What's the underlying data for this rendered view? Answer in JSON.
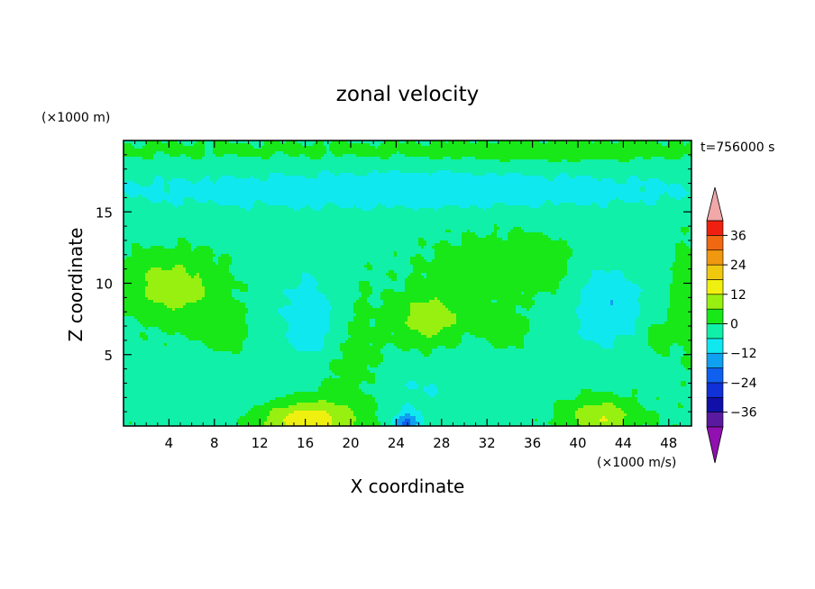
{
  "chart_data": {
    "type": "heatmap",
    "title": "zonal velocity",
    "xlabel": "X coordinate",
    "ylabel": "Z coordinate",
    "x_unit_label": "(×1000 m/s)",
    "y_unit_label": "(×1000 m)",
    "time_label": "t=756000 s",
    "xlim": [
      0,
      50
    ],
    "ylim": [
      0,
      20
    ],
    "x_ticks": [
      4,
      8,
      12,
      16,
      20,
      24,
      28,
      32,
      36,
      40,
      44,
      48
    ],
    "y_ticks": [
      5,
      10,
      15
    ],
    "colorbar": {
      "tick_labels": [
        "36",
        "24",
        "12",
        "0",
        "−12",
        "−24",
        "−36"
      ],
      "levels": [
        -42,
        -36,
        -30,
        -24,
        -18,
        -12,
        -6,
        0,
        6,
        12,
        18,
        24,
        30,
        36,
        42
      ],
      "colors": [
        "#5a1aa0",
        "#1010a8",
        "#1030d8",
        "#1060f0",
        "#10a0f0",
        "#10e8f0",
        "#10f0a8",
        "#18e818",
        "#98f010",
        "#f0f010",
        "#f0c810",
        "#f09810",
        "#f06810",
        "#f02010"
      ],
      "over_color": "#f0a8a8",
      "under_color": "#9010b0"
    },
    "blobs": [
      {
        "x": 25,
        "z": 10,
        "sx": 40,
        "sz": 12,
        "v": -3
      },
      {
        "x": 25,
        "z": 16.5,
        "sx": 40,
        "sz": 1.5,
        "v": -7
      },
      {
        "x": 27,
        "z": 16.8,
        "sx": 6,
        "sz": 1.0,
        "v": -2
      },
      {
        "x": 25,
        "z": 19.3,
        "sx": 40,
        "sz": 0.7,
        "v": 3
      },
      {
        "x": 38,
        "z": 19.2,
        "sx": 8,
        "sz": 0.6,
        "v": 4
      },
      {
        "x": 5,
        "z": 9.5,
        "sx": 4.5,
        "sz": 2.5,
        "v": 10
      },
      {
        "x": 3,
        "z": 10.5,
        "sx": 3,
        "sz": 1.5,
        "v": 3
      },
      {
        "x": 9,
        "z": 6.5,
        "sx": 2,
        "sz": 1.2,
        "v": 6
      },
      {
        "x": 16,
        "z": 0.3,
        "sx": 4,
        "sz": 1.5,
        "v": 18
      },
      {
        "x": 42,
        "z": 0.6,
        "sx": 3,
        "sz": 1.3,
        "v": 13
      },
      {
        "x": 27,
        "z": 7.5,
        "sx": 3,
        "sz": 1.8,
        "v": 12
      },
      {
        "x": 33.5,
        "z": 6.8,
        "sx": 1.8,
        "sz": 1.4,
        "v": 7
      },
      {
        "x": 16.5,
        "z": 7.5,
        "sx": 2.5,
        "sz": 3,
        "v": -9
      },
      {
        "x": 42.5,
        "z": 8.5,
        "sx": 3,
        "sz": 3,
        "v": -9
      },
      {
        "x": 25,
        "z": 0.2,
        "sx": 1.2,
        "sz": 0.8,
        "v": -18
      },
      {
        "x": 26,
        "z": 2.5,
        "sx": 5,
        "sz": 1.5,
        "v": -4
      },
      {
        "x": 31,
        "z": 11,
        "sx": 7,
        "sz": 3,
        "v": 5
      },
      {
        "x": 20,
        "z": 5,
        "sx": 3,
        "sz": 6,
        "v": 5
      },
      {
        "x": 10,
        "z": 2,
        "sx": 5,
        "sz": 1.2,
        "v": -3
      },
      {
        "x": 37,
        "z": 11.5,
        "sx": 4,
        "sz": 2,
        "v": 4
      },
      {
        "x": 49.5,
        "z": 9,
        "sx": 1.5,
        "sz": 4,
        "v": 5
      },
      {
        "x": 47,
        "z": 6.3,
        "sx": 1.2,
        "sz": 1.0,
        "v": 6
      }
    ]
  }
}
